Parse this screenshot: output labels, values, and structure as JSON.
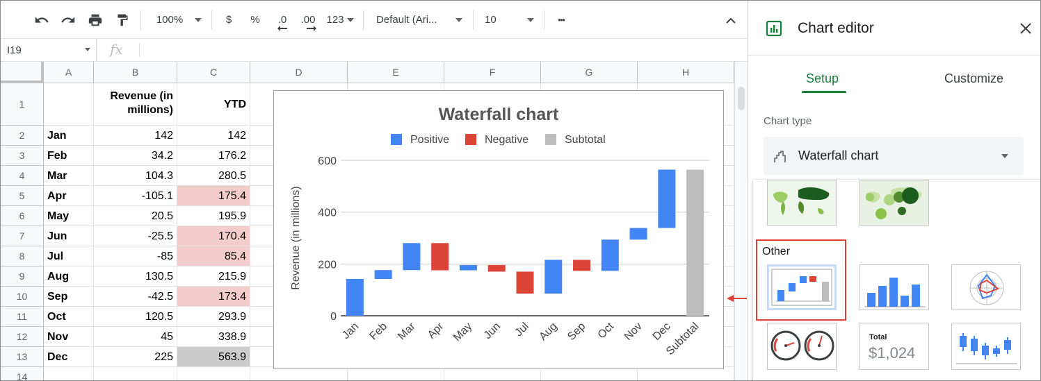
{
  "toolbar": {
    "zoom": "100%",
    "currency": "$",
    "percent": "%",
    "dec_decrease": ".0",
    "dec_increase": ".00",
    "number_format": "123",
    "font": "Default (Ari...",
    "font_size": "10",
    "more": "•••"
  },
  "formula_bar": {
    "cell_ref": "I19",
    "fx": "fx"
  },
  "columns": [
    "A",
    "B",
    "C",
    "D",
    "E",
    "F",
    "G",
    "H"
  ],
  "rows": [
    {
      "num": "1",
      "a": "",
      "b": "Revenue (in millions)",
      "c": "YTD",
      "c_hl": ""
    },
    {
      "num": "2",
      "a": "Jan",
      "b": "142",
      "c": "142",
      "c_hl": ""
    },
    {
      "num": "3",
      "a": "Feb",
      "b": "34.2",
      "c": "176.2",
      "c_hl": ""
    },
    {
      "num": "4",
      "a": "Mar",
      "b": "104.3",
      "c": "280.5",
      "c_hl": ""
    },
    {
      "num": "5",
      "a": "Apr",
      "b": "-105.1",
      "c": "175.4",
      "c_hl": "red"
    },
    {
      "num": "6",
      "a": "May",
      "b": "20.5",
      "c": "195.9",
      "c_hl": ""
    },
    {
      "num": "7",
      "a": "Jun",
      "b": "-25.5",
      "c": "170.4",
      "c_hl": "red"
    },
    {
      "num": "8",
      "a": "Jul",
      "b": "-85",
      "c": "85.4",
      "c_hl": "red"
    },
    {
      "num": "9",
      "a": "Aug",
      "b": "130.5",
      "c": "215.9",
      "c_hl": ""
    },
    {
      "num": "10",
      "a": "Sep",
      "b": "-42.5",
      "c": "173.4",
      "c_hl": "red"
    },
    {
      "num": "11",
      "a": "Oct",
      "b": "120.5",
      "c": "293.9",
      "c_hl": ""
    },
    {
      "num": "12",
      "a": "Nov",
      "b": "45",
      "c": "338.9",
      "c_hl": ""
    },
    {
      "num": "13",
      "a": "Dec",
      "b": "225",
      "c": "563.9",
      "c_hl": "gray"
    },
    {
      "num": "14",
      "a": "",
      "b": "",
      "c": "",
      "c_hl": ""
    }
  ],
  "colors": {
    "positive": "#4285f4",
    "negative": "#db4437",
    "subtotal": "#bdbdbd",
    "red_cell": "#f4cccc",
    "gray_cell": "#cccccc",
    "accent": "#188038",
    "highlight": "#db4437"
  },
  "chart_data": {
    "type": "waterfall",
    "title": "Waterfall chart",
    "ylabel": "Revenue (in millions)",
    "xlabel": "",
    "ylim": [
      0,
      600
    ],
    "yticks": [
      0,
      200,
      400,
      600
    ],
    "grid": true,
    "legend_position": "top",
    "legend": [
      "Positive",
      "Negative",
      "Subtotal"
    ],
    "categories": [
      "Jan",
      "Feb",
      "Mar",
      "Apr",
      "May",
      "Jun",
      "Jul",
      "Aug",
      "Sep",
      "Oct",
      "Nov",
      "Dec",
      "Subtotal"
    ],
    "values": [
      142,
      34.2,
      104.3,
      -105.1,
      20.5,
      -25.5,
      -85,
      130.5,
      -42.5,
      120.5,
      45,
      225,
      563.9
    ]
  },
  "sidebar": {
    "title": "Chart editor",
    "tabs": [
      {
        "label": "Setup",
        "active": true
      },
      {
        "label": "Customize",
        "active": false
      }
    ],
    "chart_type_label": "Chart type",
    "chart_type_value": "Waterfall chart",
    "group_label": "Other",
    "scorecard_label": "Total",
    "scorecard_value": "$1,024"
  }
}
